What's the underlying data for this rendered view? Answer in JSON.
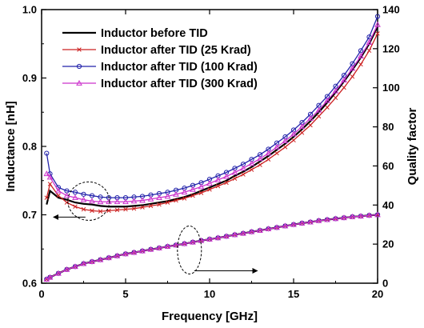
{
  "chart_data": {
    "type": "line",
    "xlabel": "Frequency [GHz]",
    "ylabel_left": "Inductance [nH]",
    "ylabel_right": "Quality factor",
    "xlim": [
      0,
      20
    ],
    "ylim_left": [
      0.6,
      1.0
    ],
    "ylim_right": [
      0,
      140
    ],
    "x_ticks": [
      0,
      5,
      10,
      15,
      20
    ],
    "y_left_ticks": [
      0.6,
      0.7,
      0.8,
      0.9,
      1.0
    ],
    "y_right_ticks": [
      0,
      20,
      40,
      60,
      80,
      100,
      120,
      140
    ],
    "y_left_tick_labels": [
      "0.6",
      "0.7",
      "0.8",
      "0.9",
      "1.0"
    ],
    "grid": false,
    "legend_position": "top-left",
    "x": [
      0.3,
      0.5,
      1,
      1.5,
      2,
      2.5,
      3,
      3.5,
      4,
      4.5,
      5,
      5.5,
      6,
      6.5,
      7,
      7.5,
      8,
      8.5,
      9,
      9.5,
      10,
      10.5,
      11,
      11.5,
      12,
      12.5,
      13,
      13.5,
      14,
      14.5,
      15,
      15.5,
      16,
      16.5,
      17,
      17.5,
      18,
      18.5,
      19,
      19.5,
      20
    ],
    "series": [
      {
        "name": "Inductor before TID",
        "color": "#000000",
        "marker": "none",
        "inductance": [
          0.715,
          0.735,
          0.725,
          0.722,
          0.718,
          0.716,
          0.715,
          0.713,
          0.712,
          0.712,
          0.712,
          0.713,
          0.714,
          0.716,
          0.718,
          0.72,
          0.723,
          0.726,
          0.73,
          0.735,
          0.74,
          0.745,
          0.75,
          0.757,
          0.763,
          0.77,
          0.778,
          0.786,
          0.795,
          0.804,
          0.814,
          0.825,
          0.837,
          0.85,
          0.864,
          0.879,
          0.895,
          0.912,
          0.93,
          0.95,
          0.975
        ],
        "quality_factor": [
          2,
          3,
          5,
          7,
          8.5,
          10,
          11,
          12,
          13,
          14,
          15,
          15.7,
          16.5,
          17.3,
          18,
          18.8,
          19.5,
          20.2,
          21,
          21.8,
          22.5,
          23.2,
          24,
          24.8,
          25.5,
          26.3,
          27,
          27.8,
          28.5,
          29.3,
          30,
          30.7,
          31.3,
          32,
          32.5,
          33,
          33.5,
          34,
          34.3,
          34.7,
          35
        ]
      },
      {
        "name": "Inductor after TID (25 Krad)",
        "color": "#cc2222",
        "marker": "x",
        "inductance": [
          0.725,
          0.745,
          0.728,
          0.718,
          0.712,
          0.708,
          0.706,
          0.705,
          0.706,
          0.707,
          0.708,
          0.709,
          0.711,
          0.713,
          0.715,
          0.718,
          0.721,
          0.724,
          0.728,
          0.732,
          0.737,
          0.742,
          0.747,
          0.753,
          0.759,
          0.766,
          0.773,
          0.781,
          0.79,
          0.799,
          0.809,
          0.82,
          0.831,
          0.844,
          0.857,
          0.871,
          0.886,
          0.902,
          0.92,
          0.94,
          0.965
        ],
        "quality_factor": [
          2,
          3,
          5,
          7,
          8.5,
          10,
          11,
          12,
          13,
          14,
          15,
          15.7,
          16.5,
          17.3,
          18,
          18.8,
          19.5,
          20.2,
          21,
          21.8,
          22.5,
          23.2,
          24,
          24.8,
          25.5,
          26.3,
          27,
          27.8,
          28.5,
          29.3,
          30,
          30.7,
          31.3,
          32,
          32.5,
          33,
          33.5,
          34,
          34.3,
          34.7,
          35
        ]
      },
      {
        "name": "Inductor after TID (100 Krad)",
        "color": "#2222aa",
        "marker": "circle",
        "inductance": [
          0.79,
          0.76,
          0.74,
          0.735,
          0.733,
          0.73,
          0.728,
          0.726,
          0.725,
          0.725,
          0.725,
          0.726,
          0.727,
          0.729,
          0.731,
          0.733,
          0.736,
          0.739,
          0.743,
          0.747,
          0.752,
          0.757,
          0.762,
          0.768,
          0.774,
          0.781,
          0.788,
          0.796,
          0.805,
          0.814,
          0.824,
          0.835,
          0.847,
          0.86,
          0.873,
          0.888,
          0.904,
          0.921,
          0.94,
          0.96,
          0.99
        ],
        "quality_factor": [
          2,
          3,
          5,
          7,
          8.5,
          10,
          11,
          12,
          13,
          14,
          15,
          15.7,
          16.5,
          17.3,
          18,
          18.8,
          19.5,
          20.2,
          21,
          21.8,
          22.5,
          23.2,
          24,
          24.8,
          25.5,
          26.3,
          27,
          27.8,
          28.5,
          29.3,
          30,
          30.7,
          31.3,
          32,
          32.5,
          33,
          33.5,
          34,
          34.3,
          34.7,
          35
        ]
      },
      {
        "name": "Inductor after TID (300 Krad)",
        "color": "#cc33cc",
        "marker": "triangle",
        "inductance": [
          0.76,
          0.755,
          0.735,
          0.728,
          0.725,
          0.722,
          0.72,
          0.719,
          0.719,
          0.719,
          0.719,
          0.72,
          0.721,
          0.723,
          0.725,
          0.727,
          0.73,
          0.733,
          0.737,
          0.741,
          0.746,
          0.751,
          0.756,
          0.762,
          0.768,
          0.775,
          0.782,
          0.79,
          0.799,
          0.808,
          0.818,
          0.829,
          0.841,
          0.853,
          0.867,
          0.881,
          0.897,
          0.914,
          0.932,
          0.952,
          0.978
        ],
        "quality_factor": [
          2,
          3,
          5,
          7,
          8.5,
          10,
          11,
          12,
          13,
          14,
          15,
          15.7,
          16.5,
          17.3,
          18,
          18.8,
          19.5,
          20.2,
          21,
          21.8,
          22.5,
          23.2,
          24,
          24.8,
          25.5,
          26.3,
          27,
          27.8,
          28.5,
          29.3,
          30,
          30.7,
          31.3,
          32,
          32.5,
          33,
          33.5,
          34,
          34.3,
          34.7,
          35
        ]
      }
    ],
    "annotations": [
      {
        "type": "ellipse",
        "target": "inductance curves",
        "arrow_direction": "left",
        "center": [
          2.8,
          0.72
        ]
      },
      {
        "type": "ellipse",
        "target": "quality factor curves",
        "arrow_direction": "right",
        "center": [
          8.8,
          17
        ]
      }
    ]
  }
}
